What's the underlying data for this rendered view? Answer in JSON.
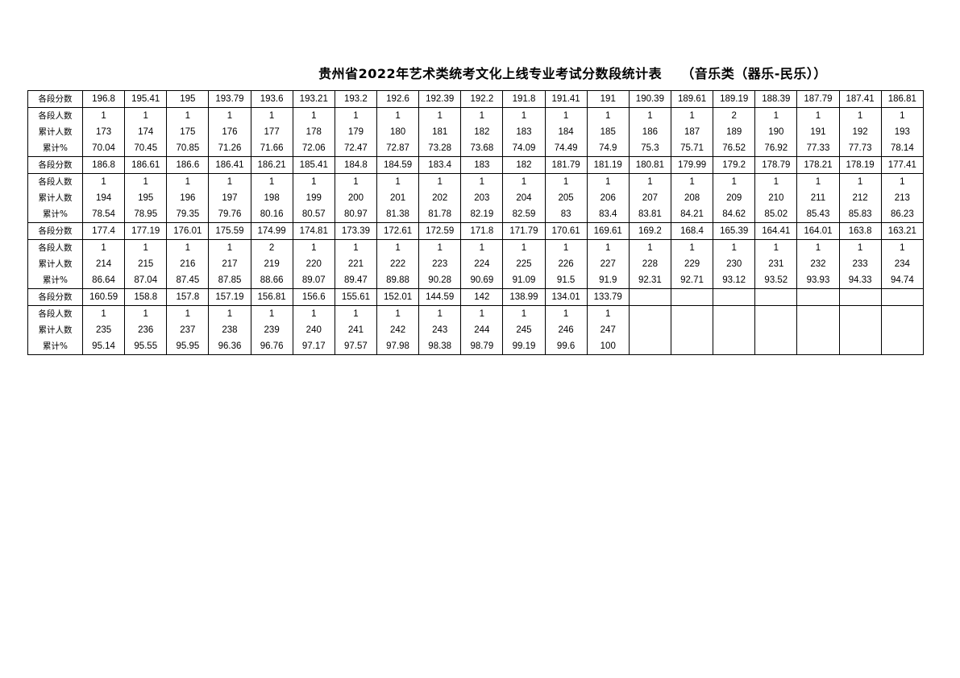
{
  "title": {
    "main": "贵州省2022年艺术类统考文化上线专业考试分数段统计表",
    "sub": "（音乐类（器乐-民乐））"
  },
  "labels": {
    "score": "各段分数",
    "count": "各段人数",
    "cumulative": "累计人数",
    "percent": "累计%"
  },
  "blocks": [
    {
      "scores": [
        "196.8",
        "195.41",
        "195",
        "193.79",
        "193.6",
        "193.21",
        "193.2",
        "192.6",
        "192.39",
        "192.2",
        "191.8",
        "191.41",
        "191",
        "190.39",
        "189.61",
        "189.19",
        "188.39",
        "187.79",
        "187.41",
        "186.81"
      ],
      "counts": [
        "1",
        "1",
        "1",
        "1",
        "1",
        "1",
        "1",
        "1",
        "1",
        "1",
        "1",
        "1",
        "1",
        "1",
        "1",
        "2",
        "1",
        "1",
        "1",
        "1"
      ],
      "cumulative": [
        "173",
        "174",
        "175",
        "176",
        "177",
        "178",
        "179",
        "180",
        "181",
        "182",
        "183",
        "184",
        "185",
        "186",
        "187",
        "189",
        "190",
        "191",
        "192",
        "193"
      ],
      "percent": [
        "70.04",
        "70.45",
        "70.85",
        "71.26",
        "71.66",
        "72.06",
        "72.47",
        "72.87",
        "73.28",
        "73.68",
        "74.09",
        "74.49",
        "74.9",
        "75.3",
        "75.71",
        "76.52",
        "76.92",
        "77.33",
        "77.73",
        "78.14"
      ]
    },
    {
      "scores": [
        "186.8",
        "186.61",
        "186.6",
        "186.41",
        "186.21",
        "185.41",
        "184.8",
        "184.59",
        "183.4",
        "183",
        "182",
        "181.79",
        "181.19",
        "180.81",
        "179.99",
        "179.2",
        "178.79",
        "178.21",
        "178.19",
        "177.41"
      ],
      "counts": [
        "1",
        "1",
        "1",
        "1",
        "1",
        "1",
        "1",
        "1",
        "1",
        "1",
        "1",
        "1",
        "1",
        "1",
        "1",
        "1",
        "1",
        "1",
        "1",
        "1"
      ],
      "cumulative": [
        "194",
        "195",
        "196",
        "197",
        "198",
        "199",
        "200",
        "201",
        "202",
        "203",
        "204",
        "205",
        "206",
        "207",
        "208",
        "209",
        "210",
        "211",
        "212",
        "213"
      ],
      "percent": [
        "78.54",
        "78.95",
        "79.35",
        "79.76",
        "80.16",
        "80.57",
        "80.97",
        "81.38",
        "81.78",
        "82.19",
        "82.59",
        "83",
        "83.4",
        "83.81",
        "84.21",
        "84.62",
        "85.02",
        "85.43",
        "85.83",
        "86.23"
      ]
    },
    {
      "scores": [
        "177.4",
        "177.19",
        "176.01",
        "175.59",
        "174.99",
        "174.81",
        "173.39",
        "172.61",
        "172.59",
        "171.8",
        "171.79",
        "170.61",
        "169.61",
        "169.2",
        "168.4",
        "165.39",
        "164.41",
        "164.01",
        "163.8",
        "163.21"
      ],
      "counts": [
        "1",
        "1",
        "1",
        "1",
        "2",
        "1",
        "1",
        "1",
        "1",
        "1",
        "1",
        "1",
        "1",
        "1",
        "1",
        "1",
        "1",
        "1",
        "1",
        "1"
      ],
      "cumulative": [
        "214",
        "215",
        "216",
        "217",
        "219",
        "220",
        "221",
        "222",
        "223",
        "224",
        "225",
        "226",
        "227",
        "228",
        "229",
        "230",
        "231",
        "232",
        "233",
        "234"
      ],
      "percent": [
        "86.64",
        "87.04",
        "87.45",
        "87.85",
        "88.66",
        "89.07",
        "89.47",
        "89.88",
        "90.28",
        "90.69",
        "91.09",
        "91.5",
        "91.9",
        "92.31",
        "92.71",
        "93.12",
        "93.52",
        "93.93",
        "94.33",
        "94.74"
      ]
    },
    {
      "scores": [
        "160.59",
        "158.8",
        "157.8",
        "157.19",
        "156.81",
        "156.6",
        "155.61",
        "152.01",
        "144.59",
        "142",
        "138.99",
        "134.01",
        "133.79",
        "",
        "",
        "",
        "",
        "",
        "",
        ""
      ],
      "counts": [
        "1",
        "1",
        "1",
        "1",
        "1",
        "1",
        "1",
        "1",
        "1",
        "1",
        "1",
        "1",
        "1",
        "",
        "",
        "",
        "",
        "",
        "",
        ""
      ],
      "cumulative": [
        "235",
        "236",
        "237",
        "238",
        "239",
        "240",
        "241",
        "242",
        "243",
        "244",
        "245",
        "246",
        "247",
        "",
        "",
        "",
        "",
        "",
        "",
        ""
      ],
      "percent": [
        "95.14",
        "95.55",
        "95.95",
        "96.36",
        "96.76",
        "97.17",
        "97.57",
        "97.98",
        "98.38",
        "98.79",
        "99.19",
        "99.6",
        "100",
        "",
        "",
        "",
        "",
        "",
        "",
        ""
      ]
    }
  ]
}
